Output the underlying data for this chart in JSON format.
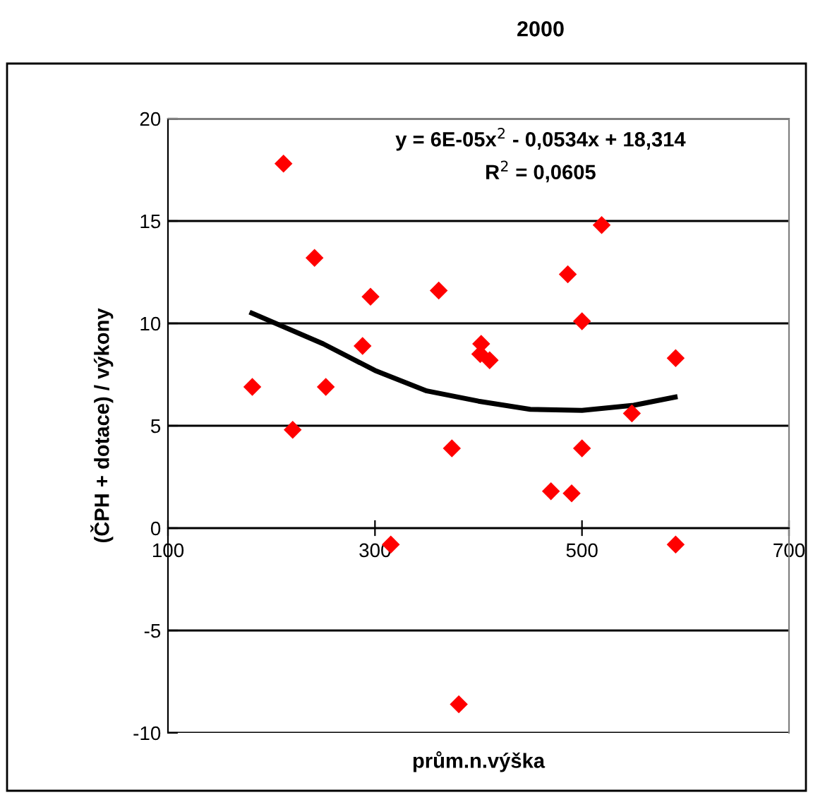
{
  "chart_data": {
    "type": "scatter",
    "title": "2000",
    "xlabel": "prům.n.výška",
    "ylabel": "(ČPH + dotace) / výkony",
    "annotations": [
      "y = 6E-05x$^{2}$ - 0,0534x + 18,314",
      "R$^{2}$ = 0,0605"
    ],
    "series": [
      {
        "color": "#ff0000",
        "marker": "diamond",
        "x": [
          181.5,
          211.6,
          241.6,
          220.5,
          252.5,
          288,
          295.7,
          315.3,
          361.6,
          374.3,
          381,
          402.6,
          401.7,
          410.8,
          519,
          486.3,
          500,
          590.5,
          548.2,
          500,
          470,
          490,
          590.5
        ],
        "values": [
          6.9,
          17.8,
          13.2,
          4.8,
          6.9,
          8.9,
          11.3,
          -0.8,
          11.6,
          3.9,
          -8.6,
          9.0,
          8.5,
          8.2,
          14.8,
          12.4,
          10.1,
          8.3,
          5.6,
          3.9,
          1.8,
          1.7,
          -0.8
        ]
      },
      {
        "type": "line",
        "color": "#000000",
        "marker": "none",
        "line_style": "solid",
        "x": [
          181,
          250,
          300,
          350,
          400,
          450,
          500,
          550,
          590
        ],
        "values": [
          10.5,
          9.0,
          7.7,
          6.7,
          6.2,
          5.8,
          5.75,
          6.0,
          6.4
        ]
      }
    ],
    "xlim": [
      100,
      700
    ],
    "xticks": [
      100,
      300,
      500,
      700
    ],
    "ylim": [
      -10,
      20
    ],
    "yticks": [
      -10,
      -5,
      0,
      5,
      10,
      15,
      20
    ],
    "grid": "y"
  }
}
